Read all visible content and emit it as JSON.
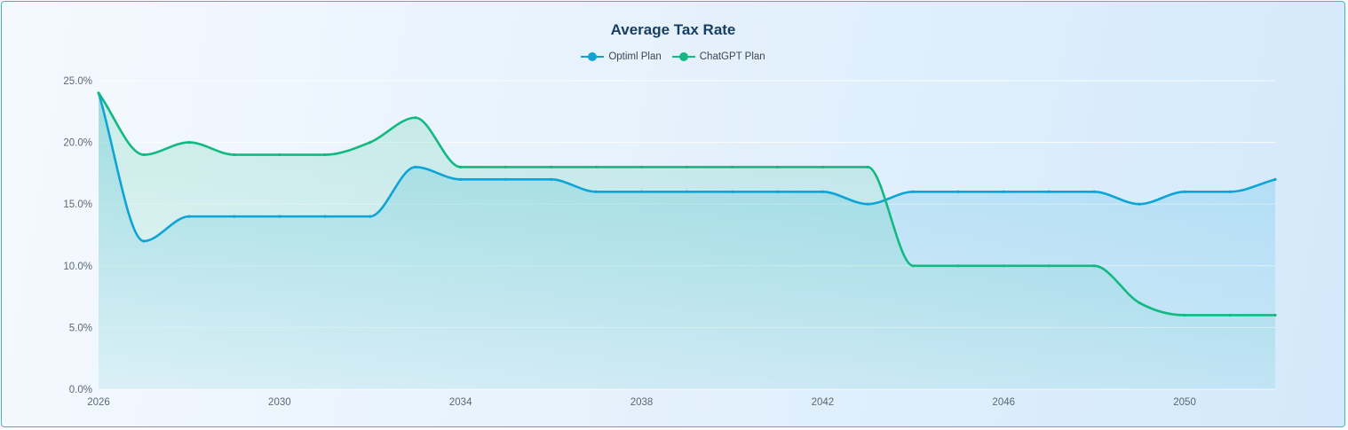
{
  "chart_data": {
    "type": "area",
    "title": "Average Tax Rate",
    "xlabel": "",
    "ylabel": "",
    "x": [
      2026,
      2027,
      2028,
      2029,
      2030,
      2031,
      2032,
      2033,
      2034,
      2035,
      2036,
      2037,
      2038,
      2039,
      2040,
      2041,
      2042,
      2043,
      2044,
      2045,
      2046,
      2047,
      2048,
      2049,
      2050,
      2051,
      2052
    ],
    "xlim": [
      2026,
      2052
    ],
    "ylim": [
      0,
      25
    ],
    "x_ticks": [
      "2026",
      "2030",
      "2034",
      "2038",
      "2042",
      "2046",
      "2050"
    ],
    "y_ticks": [
      "0.0%",
      "5.0%",
      "10.0%",
      "15.0%",
      "20.0%",
      "25.0%"
    ],
    "grid": true,
    "legend_position": "top-center",
    "series": [
      {
        "name": "Optiml Plan",
        "color": "#0ea5d6",
        "values": [
          24,
          12,
          14,
          14,
          14,
          14,
          14,
          18,
          17,
          17,
          17,
          16,
          16,
          16,
          16,
          16,
          16,
          15,
          16,
          16,
          16,
          16,
          16,
          15,
          16,
          16,
          17
        ]
      },
      {
        "name": "ChatGPT Plan",
        "color": "#12b981",
        "values": [
          24,
          19,
          20,
          19,
          19,
          19,
          20,
          22,
          18,
          18,
          18,
          18,
          18,
          18,
          18,
          18,
          18,
          18,
          10,
          10,
          10,
          10,
          10,
          7,
          6,
          6,
          6
        ]
      }
    ]
  }
}
